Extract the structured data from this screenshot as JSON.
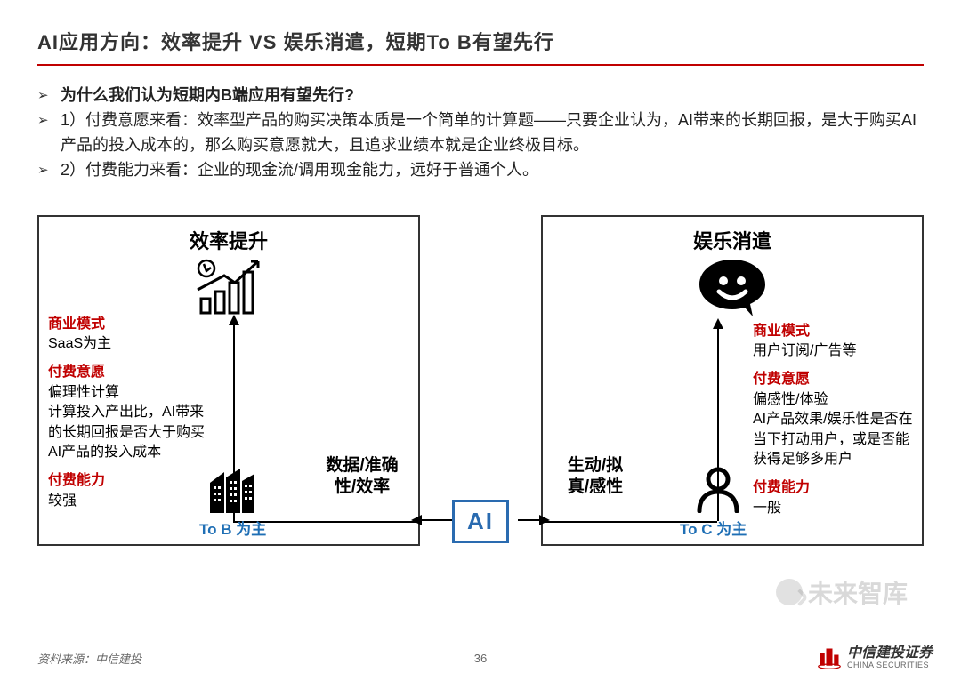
{
  "title": "AI应用方向：效率提升 VS 娱乐消遣，短期To B有望先行",
  "bullets": {
    "q": "为什么我们认为短期内B端应用有望先行?",
    "p1": "1）付费意愿来看：效率型产品的购买决策本质是一个简单的计算题——只要企业认为，AI带来的长期回报，是大于购买AI产品的投入成本的，那么购买意愿就大，且追求业绩本就是企业终极目标。",
    "p2": "2）付费能力来看：企业的现金流/调用现金能力，远好于普通个人。"
  },
  "center": {
    "ai": "AI",
    "left_label": "数据/准确性/效率",
    "right_label": "生动/拟真/感性"
  },
  "left": {
    "title": "效率提升",
    "bottom_label": "To B 为主",
    "blocks": [
      {
        "red": "商业模式",
        "body": "SaaS为主"
      },
      {
        "red": "付费意愿",
        "body": "偏理性计算\n计算投入产出比，AI带来的长期回报是否大于购买AI产品的投入成本"
      },
      {
        "red": "付费能力",
        "body": "较强"
      }
    ]
  },
  "right": {
    "title": "娱乐消遣",
    "bottom_label": "To C 为主",
    "blocks": [
      {
        "red": "商业模式",
        "body": "用户订阅/广告等"
      },
      {
        "red": "付费意愿",
        "body": "偏感性/体验\nAI产品效果/娱乐性是否在当下打动用户，或是否能获得足够多用户"
      },
      {
        "red": "付费能力",
        "body": "一般"
      }
    ]
  },
  "footer": {
    "source": "资料来源：中信建投",
    "page": "36",
    "company_zh": "中信建投证券",
    "company_en": "CHINA SECURITIES"
  },
  "watermark": "未来智库",
  "colors": {
    "accent_red": "#c00000",
    "accent_blue": "#2a6bb0",
    "text_blue": "#1f6fb5",
    "border": "#333333"
  }
}
